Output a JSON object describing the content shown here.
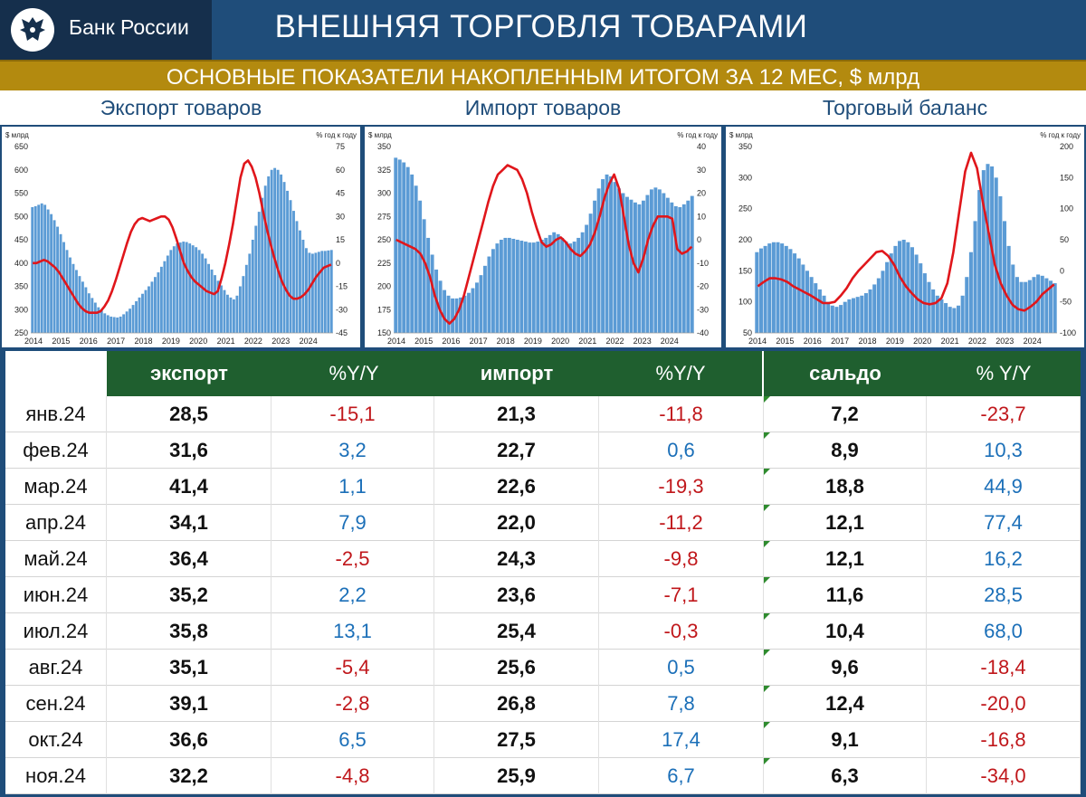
{
  "header": {
    "logo_text": "Банк России",
    "title": "ВНЕШНЯЯ ТОРГОВЛЯ ТОВАРАМИ",
    "subtitle": "ОСНОВНЫЕ ПОКАЗАТЕЛИ НАКОПЛЕННЫМ ИТОГОМ ЗА 12 МЕС, $ млрд"
  },
  "panels": [
    {
      "title": "Экспорт товаров"
    },
    {
      "title": "Импорт товаров"
    },
    {
      "title": "Торговый баланс"
    }
  ],
  "colors": {
    "bars": "#5b9bd5",
    "line": "#e0161b",
    "navy": "#1f4d7a",
    "gold": "#b38a0f",
    "table_header": "#1f5f2f",
    "negative": "#c0171b",
    "positive": "#1b6fb8"
  },
  "chart_data": [
    {
      "type": "bar",
      "panel": "Экспорт товаров",
      "ylabel_left": "$ млрд",
      "ylabel_right": "% год к году",
      "x_ticks": [
        "2014",
        "2015",
        "2016",
        "2017",
        "2018",
        "2019",
        "2020",
        "2021",
        "2022",
        "2023",
        "2024"
      ],
      "ylim": [
        250,
        650
      ],
      "yticks_left": [
        250,
        300,
        350,
        400,
        450,
        500,
        550,
        600,
        650
      ],
      "ylim_right": [
        -45,
        75
      ],
      "yticks_right": [
        -45,
        -30,
        -15,
        0,
        15,
        30,
        45,
        60,
        75
      ],
      "series": [
        {
          "values": [
            520,
            522,
            525,
            528,
            525,
            515,
            505,
            492,
            478,
            462,
            445,
            428,
            412,
            398,
            385,
            372,
            360,
            348,
            335,
            325,
            315,
            305,
            298,
            292,
            288,
            285,
            284,
            283,
            285,
            290,
            296,
            302,
            310,
            318,
            326,
            334,
            342,
            350,
            360,
            370,
            380,
            392,
            404,
            416,
            428,
            436,
            442,
            444,
            446,
            445,
            442,
            438,
            434,
            428,
            420,
            410,
            398,
            386,
            374,
            362,
            352,
            342,
            332,
            326,
            322,
            330,
            350,
            372,
            396,
            420,
            450,
            480,
            510,
            540,
            566,
            586,
            600,
            604,
            600,
            590,
            574,
            555,
            535,
            512,
            490,
            470,
            450,
            432,
            422,
            420,
            422,
            424,
            426,
            426,
            427,
            428
          ]
        },
        {
          "values": [
            0,
            0,
            1,
            2,
            1,
            -1,
            -3,
            -6,
            -10,
            -14,
            -18,
            -22,
            -26,
            -29,
            -31,
            -32,
            -32,
            -32,
            -31,
            -28,
            -24,
            -18,
            -11,
            -3,
            5,
            13,
            20,
            25,
            28,
            29,
            28,
            27,
            28,
            29,
            30,
            30,
            28,
            23,
            16,
            8,
            0,
            -5,
            -9,
            -12,
            -14,
            -16,
            -18,
            -19,
            -20,
            -18,
            -10,
            0,
            12,
            25,
            40,
            55,
            64,
            66,
            62,
            55,
            45,
            33,
            22,
            12,
            3,
            -5,
            -12,
            -17,
            -21,
            -23,
            -23,
            -22,
            -20,
            -17,
            -13,
            -9,
            -6,
            -3,
            -2,
            -1
          ]
        }
      ]
    },
    {
      "type": "bar",
      "panel": "Импорт товаров",
      "ylabel_left": "$ млрд",
      "ylabel_right": "% год к году",
      "x_ticks": [
        "2014",
        "2015",
        "2016",
        "2017",
        "2018",
        "2019",
        "2020",
        "2021",
        "2022",
        "2023",
        "2024"
      ],
      "ylim": [
        150,
        350
      ],
      "yticks_left": [
        150,
        175,
        200,
        225,
        250,
        275,
        300,
        325,
        350
      ],
      "ylim_right": [
        -40,
        40
      ],
      "yticks_right": [
        -40,
        -30,
        -20,
        -10,
        0,
        10,
        20,
        30,
        40
      ],
      "series": [
        {
          "values": [
            338,
            336,
            333,
            328,
            320,
            308,
            292,
            272,
            252,
            234,
            218,
            206,
            196,
            190,
            187,
            187,
            188,
            190,
            193,
            198,
            204,
            212,
            222,
            232,
            240,
            246,
            250,
            252,
            252,
            251,
            250,
            249,
            248,
            247,
            247,
            248,
            250,
            252,
            255,
            258,
            256,
            252,
            248,
            246,
            248,
            252,
            258,
            266,
            278,
            292,
            305,
            315,
            320,
            318,
            312,
            305,
            300,
            296,
            293,
            290,
            288,
            292,
            298,
            304,
            306,
            304,
            300,
            295,
            290,
            286,
            285,
            288,
            292,
            297
          ]
        },
        {
          "values": [
            0,
            -1,
            -2,
            -3,
            -4,
            -6,
            -10,
            -16,
            -24,
            -30,
            -34,
            -36,
            -34,
            -30,
            -24,
            -16,
            -8,
            0,
            8,
            16,
            23,
            28,
            30,
            32,
            31,
            30,
            26,
            20,
            12,
            5,
            -1,
            -3,
            -2,
            0,
            1,
            -1,
            -4,
            -6,
            -7,
            -5,
            -2,
            3,
            10,
            18,
            24,
            28,
            22,
            10,
            -2,
            -10,
            -14,
            -8,
            0,
            6,
            10,
            10,
            10,
            9,
            -4,
            -6,
            -5,
            -3
          ]
        }
      ]
    },
    {
      "type": "bar",
      "panel": "Торговый баланс",
      "ylabel_left": "$ млрд",
      "ylabel_right": "% год к году",
      "x_ticks": [
        "2014",
        "2015",
        "2016",
        "2017",
        "2018",
        "2019",
        "2020",
        "2021",
        "2022",
        "2023",
        "2024"
      ],
      "ylim": [
        50,
        350
      ],
      "yticks_left": [
        50,
        100,
        150,
        200,
        250,
        300,
        350
      ],
      "ylim_right": [
        -100,
        200
      ],
      "yticks_right": [
        -100,
        -50,
        0,
        50,
        100,
        150,
        200
      ],
      "series": [
        {
          "values": [
            180,
            186,
            190,
            194,
            196,
            196,
            194,
            190,
            185,
            178,
            170,
            160,
            150,
            140,
            130,
            120,
            110,
            100,
            94,
            92,
            95,
            100,
            104,
            106,
            108,
            110,
            114,
            120,
            128,
            138,
            150,
            164,
            178,
            190,
            198,
            200,
            196,
            188,
            176,
            162,
            146,
            132,
            120,
            110,
            104,
            98,
            92,
            90,
            94,
            110,
            140,
            180,
            230,
            280,
            312,
            322,
            318,
            300,
            270,
            230,
            190,
            160,
            140,
            132,
            132,
            135,
            140,
            144,
            142,
            138,
            134,
            130
          ]
        },
        {
          "values": [
            -25,
            -18,
            -12,
            -12,
            -14,
            -18,
            -25,
            -30,
            -35,
            -40,
            -46,
            -52,
            -52,
            -50,
            -40,
            -28,
            -12,
            0,
            10,
            20,
            30,
            32,
            24,
            10,
            -10,
            -25,
            -36,
            -46,
            -52,
            -54,
            -52,
            -44,
            -20,
            30,
            95,
            160,
            190,
            165,
            110,
            60,
            10,
            -20,
            -40,
            -55,
            -62,
            -64,
            -58,
            -50,
            -38,
            -30,
            -22
          ]
        }
      ]
    }
  ],
  "table": {
    "columns": [
      "",
      "экспорт",
      "%Y/Y",
      "импорт",
      "%Y/Y",
      "сальдо",
      "% Y/Y"
    ],
    "rows": [
      {
        "month": "янв.24",
        "export": "28,5",
        "export_yy": "-15,1",
        "import": "21,3",
        "import_yy": "-11,8",
        "balance": "7,2",
        "balance_yy": "-23,7"
      },
      {
        "month": "фев.24",
        "export": "31,6",
        "export_yy": "3,2",
        "import": "22,7",
        "import_yy": "0,6",
        "balance": "8,9",
        "balance_yy": "10,3"
      },
      {
        "month": "мар.24",
        "export": "41,4",
        "export_yy": "1,1",
        "import": "22,6",
        "import_yy": "-19,3",
        "balance": "18,8",
        "balance_yy": "44,9"
      },
      {
        "month": "апр.24",
        "export": "34,1",
        "export_yy": "7,9",
        "import": "22,0",
        "import_yy": "-11,2",
        "balance": "12,1",
        "balance_yy": "77,4"
      },
      {
        "month": "май.24",
        "export": "36,4",
        "export_yy": "-2,5",
        "import": "24,3",
        "import_yy": "-9,8",
        "balance": "12,1",
        "balance_yy": "16,2"
      },
      {
        "month": "июн.24",
        "export": "35,2",
        "export_yy": "2,2",
        "import": "23,6",
        "import_yy": "-7,1",
        "balance": "11,6",
        "balance_yy": "28,5"
      },
      {
        "month": "июл.24",
        "export": "35,8",
        "export_yy": "13,1",
        "import": "25,4",
        "import_yy": "-0,3",
        "balance": "10,4",
        "balance_yy": "68,0"
      },
      {
        "month": "авг.24",
        "export": "35,1",
        "export_yy": "-5,4",
        "import": "25,6",
        "import_yy": "0,5",
        "balance": "9,6",
        "balance_yy": "-18,4"
      },
      {
        "month": "сен.24",
        "export": "39,1",
        "export_yy": "-2,8",
        "import": "26,8",
        "import_yy": "7,8",
        "balance": "12,4",
        "balance_yy": "-20,0"
      },
      {
        "month": "окт.24",
        "export": "36,6",
        "export_yy": "6,5",
        "import": "27,5",
        "import_yy": "17,4",
        "balance": "9,1",
        "balance_yy": "-16,8"
      },
      {
        "month": "ноя.24",
        "export": "32,2",
        "export_yy": "-4,8",
        "import": "25,9",
        "import_yy": "6,7",
        "balance": "6,3",
        "balance_yy": "-34,0"
      }
    ]
  }
}
